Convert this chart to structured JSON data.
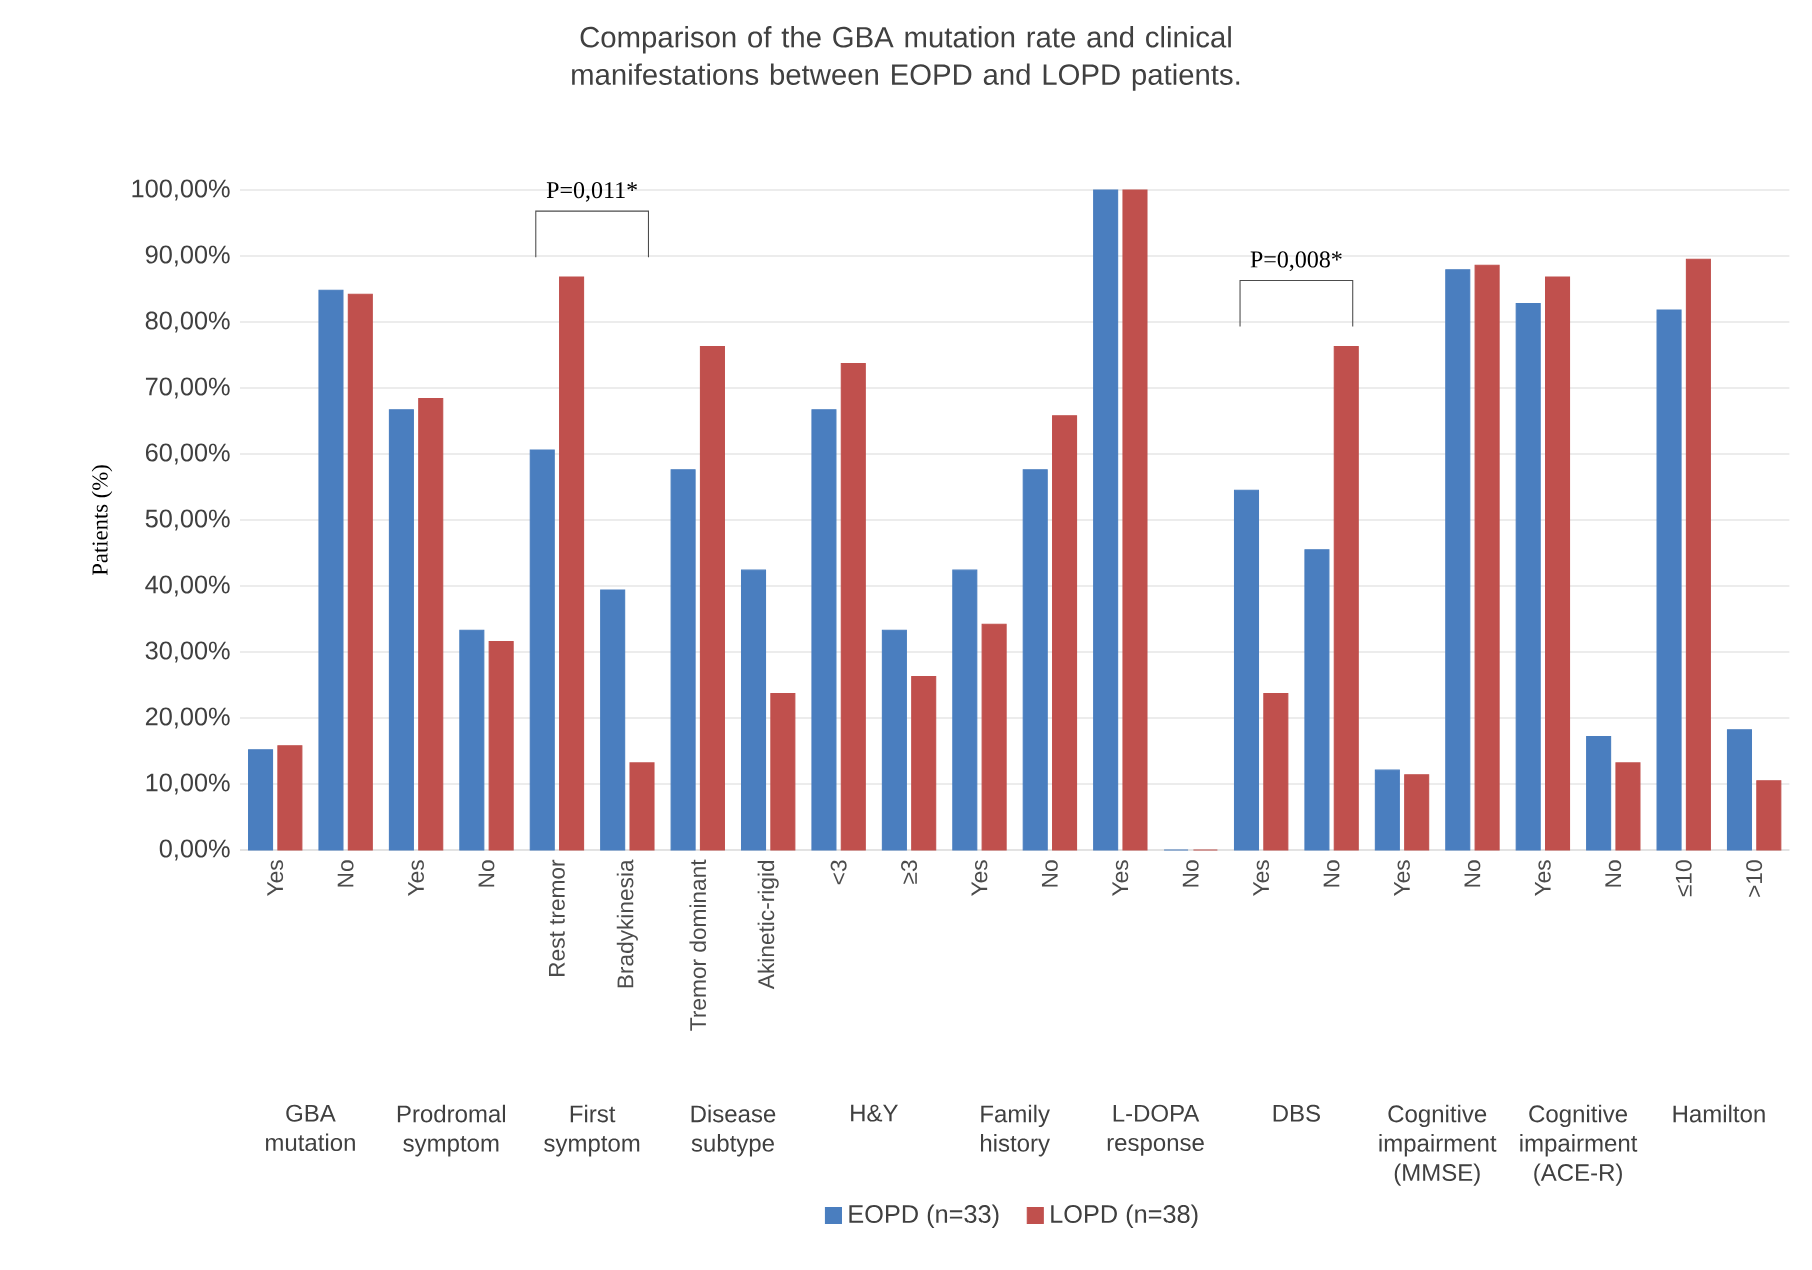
{
  "chart_data": {
    "type": "bar",
    "title": "Comparison of the GBA mutation rate and clinical manifestations between EOPD and LOPD patients.",
    "ylabel": "Patients (%)",
    "categories": [
      "Yes",
      "No",
      "Yes",
      "No",
      "Rest tremor",
      "Bradykinesia",
      "Tremor dominant",
      "Akinetic-rigid",
      "<3",
      "≥3",
      "Yes",
      "No",
      "Yes",
      "No",
      "Yes",
      "No",
      "Yes",
      "No",
      "Yes",
      "No",
      "≤10",
      ">10"
    ],
    "series": [
      {
        "name": "EOPD  (n=33)",
        "color": "#4a7ebf",
        "values": [
          15.2,
          84.8,
          66.7,
          33.3,
          60.6,
          39.4,
          57.6,
          42.4,
          66.7,
          33.3,
          42.4,
          57.6,
          100,
          0,
          54.5,
          45.5,
          12.1,
          87.9,
          82.8,
          17.2,
          81.8,
          18.2
        ]
      },
      {
        "name": "LOPD (n=38)",
        "color": "#c0504d",
        "values": [
          15.8,
          84.2,
          68.4,
          31.6,
          86.8,
          13.2,
          76.3,
          23.7,
          73.7,
          26.3,
          34.2,
          65.8,
          100,
          0,
          23.7,
          76.3,
          11.4,
          88.6,
          86.8,
          13.2,
          89.5,
          10.5
        ]
      }
    ],
    "annotations": [
      "GBA mutation",
      "Prodromal symptom",
      "First symptom",
      "Disease subtype",
      "H&Y",
      "Family history",
      "L-DOPA response",
      "DBS",
      "Cognitive impairment (MMSE)",
      "Cognitive impairment (ACE-R)",
      "Hamilton",
      "P=0,011*",
      "P=0,008*"
    ],
    "ylim": [
      0,
      100
    ],
    "yticks": [
      {
        "value": 0,
        "label": "0,00%"
      },
      {
        "value": 10,
        "label": "10,00%"
      },
      {
        "value": 20,
        "label": "20,00%"
      },
      {
        "value": 30,
        "label": "30,00%"
      },
      {
        "value": 40,
        "label": "40,00%"
      },
      {
        "value": 50,
        "label": "50,00%"
      },
      {
        "value": 60,
        "label": "60,00%"
      },
      {
        "value": 70,
        "label": "70,00%"
      },
      {
        "value": 80,
        "label": "80,00%"
      },
      {
        "value": 90,
        "label": "90,00%"
      },
      {
        "value": 100,
        "label": "100,00%"
      }
    ],
    "grid": "y",
    "legend": "bottom"
  }
}
